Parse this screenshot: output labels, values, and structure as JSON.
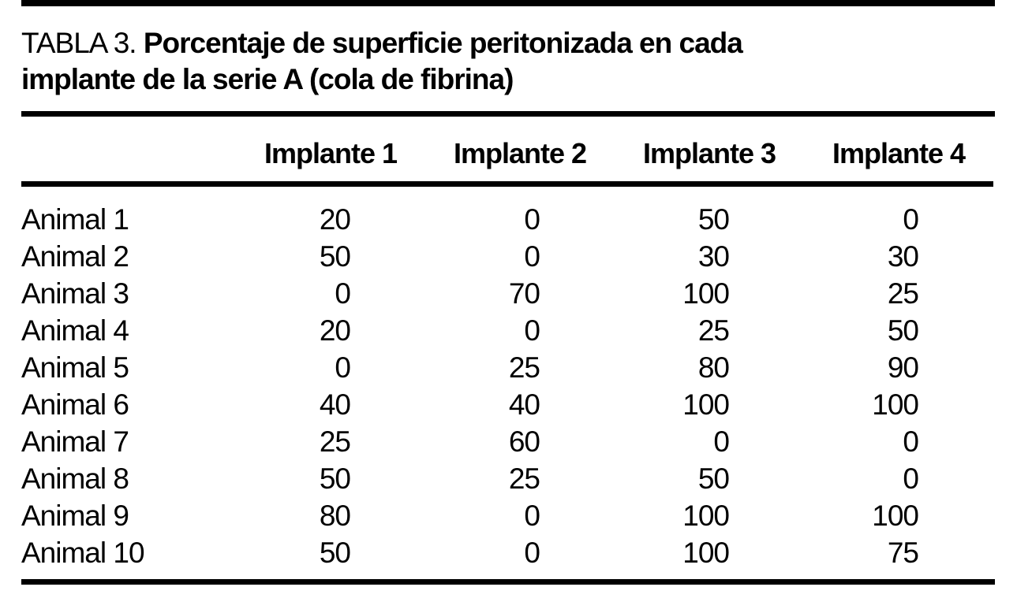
{
  "colors": {
    "background": "#ffffff",
    "text": "#000000",
    "rule": "#000000"
  },
  "table": {
    "label": "TABLA 3.",
    "title_lines": [
      "Porcentaje de superficie peritonizada en cada",
      "implante de la serie A (cola de fibrina)"
    ],
    "columns": [
      "Implante 1",
      "Implante 2",
      "Implante 3",
      "Implante 4"
    ],
    "rows": [
      {
        "label": "Animal 1",
        "values": [
          20,
          0,
          50,
          0
        ]
      },
      {
        "label": "Animal 2",
        "values": [
          50,
          0,
          30,
          30
        ]
      },
      {
        "label": "Animal 3",
        "values": [
          0,
          70,
          100,
          25
        ]
      },
      {
        "label": "Animal 4",
        "values": [
          20,
          0,
          25,
          50
        ]
      },
      {
        "label": "Animal 5",
        "values": [
          0,
          25,
          80,
          90
        ]
      },
      {
        "label": "Animal 6",
        "values": [
          40,
          40,
          100,
          100
        ]
      },
      {
        "label": "Animal 7",
        "values": [
          25,
          60,
          0,
          0
        ]
      },
      {
        "label": "Animal 8",
        "values": [
          50,
          25,
          50,
          0
        ]
      },
      {
        "label": "Animal 9",
        "values": [
          80,
          0,
          100,
          100
        ]
      },
      {
        "label": "Animal 10",
        "values": [
          50,
          0,
          100,
          75
        ]
      }
    ]
  }
}
